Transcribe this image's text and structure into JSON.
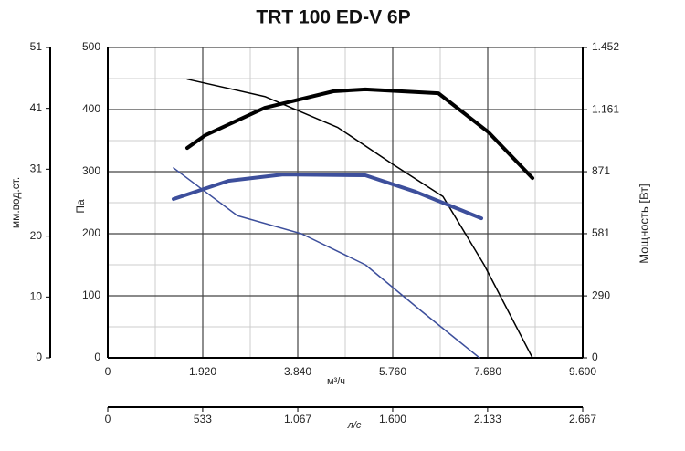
{
  "chart_data": {
    "type": "line",
    "title": "TRT 100 ED-V 6P",
    "xlabel": "м³/ч",
    "ylabel": "Па",
    "y2label": "Мощность [Вт]",
    "x2label": "л/с",
    "y3label": "мм.вод.ст.",
    "xlim": [
      0,
      9600
    ],
    "xticks": [
      0,
      {
        "value": 1920,
        "label": "1.920"
      },
      {
        "value": 3840,
        "label": "3.840"
      },
      {
        "value": 5760,
        "label": "5.760"
      },
      {
        "value": 7680,
        "label": "7.680"
      },
      {
        "value": 9600,
        "label": "9.600"
      }
    ],
    "x2lim": [
      0,
      2667
    ],
    "x2ticks": [
      0,
      533,
      {
        "value": 1067,
        "label": "1.067"
      },
      {
        "value": 1600,
        "label": "1.600"
      },
      {
        "value": 2133,
        "label": "2.133"
      },
      {
        "value": 2667,
        "label": "2.667"
      }
    ],
    "ylim": [
      0,
      500
    ],
    "yticks": [
      0,
      100,
      200,
      300,
      400,
      500
    ],
    "y2lim": [
      0,
      1452
    ],
    "y2ticks": [
      0,
      290,
      581,
      871,
      {
        "value": 1161,
        "label": "1.161"
      },
      {
        "value": 1452,
        "label": "1.452"
      }
    ],
    "y3lim": [
      0,
      51
    ],
    "y3ticks": [
      0,
      10,
      20,
      31,
      41,
      51
    ],
    "grid": true,
    "series": [
      {
        "color": "#000000",
        "width": 1.5,
        "x": [
          1606,
          3175,
          4652,
          5760,
          6775,
          7606,
          8585
        ],
        "values": [
          449,
          421,
          371,
          312,
          260,
          150,
          0
        ]
      },
      {
        "color": "#3d4f9c",
        "width": 1.5,
        "x": [
          1329,
          2622,
          3914,
          5206,
          6314,
          7514
        ],
        "values": [
          306,
          229,
          200,
          150,
          77,
          0
        ]
      },
      {
        "color": "#000000",
        "width": 4,
        "axis": "y2",
        "x": [
          1606,
          1975,
          3175,
          4560,
          5206,
          6683,
          7698,
          8585
        ],
        "values": [
          982,
          1042,
          1170,
          1247,
          1256,
          1238,
          1055,
          841
        ]
      },
      {
        "color": "#3d4f9c",
        "width": 4,
        "axis": "y2",
        "x": [
          1329,
          2437,
          3545,
          5206,
          6222,
          7551
        ],
        "values": [
          743,
          828,
          858,
          854,
          777,
          653
        ]
      }
    ]
  }
}
